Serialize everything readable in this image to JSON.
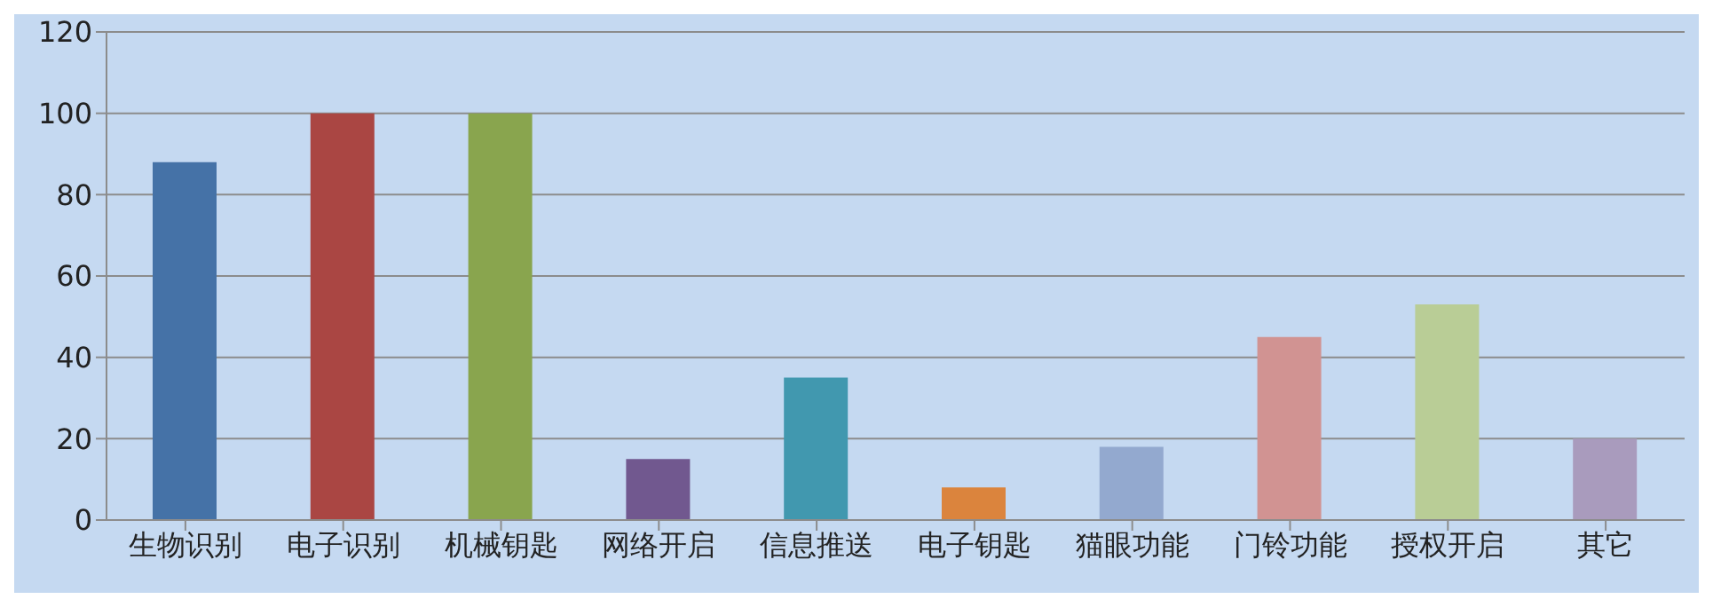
{
  "chart_data": {
    "type": "bar",
    "categories": [
      "生物识别",
      "电子识别",
      "机械钥匙",
      "网络开启",
      "信息推送",
      "电子钥匙",
      "猫眼功能",
      "门铃功能",
      "授权开启",
      "其它"
    ],
    "values": [
      88,
      100,
      100,
      15,
      35,
      8,
      18,
      45,
      53,
      20
    ],
    "colors": [
      "#4572a7",
      "#aa4643",
      "#89a54e",
      "#71588f",
      "#4198af",
      "#db843d",
      "#93a9cf",
      "#d19392",
      "#b9cd96",
      "#a99bbd"
    ],
    "ylim": [
      0,
      120
    ],
    "yticks": [
      0,
      20,
      40,
      60,
      80,
      100,
      120
    ],
    "grid": "y",
    "legend": false
  }
}
